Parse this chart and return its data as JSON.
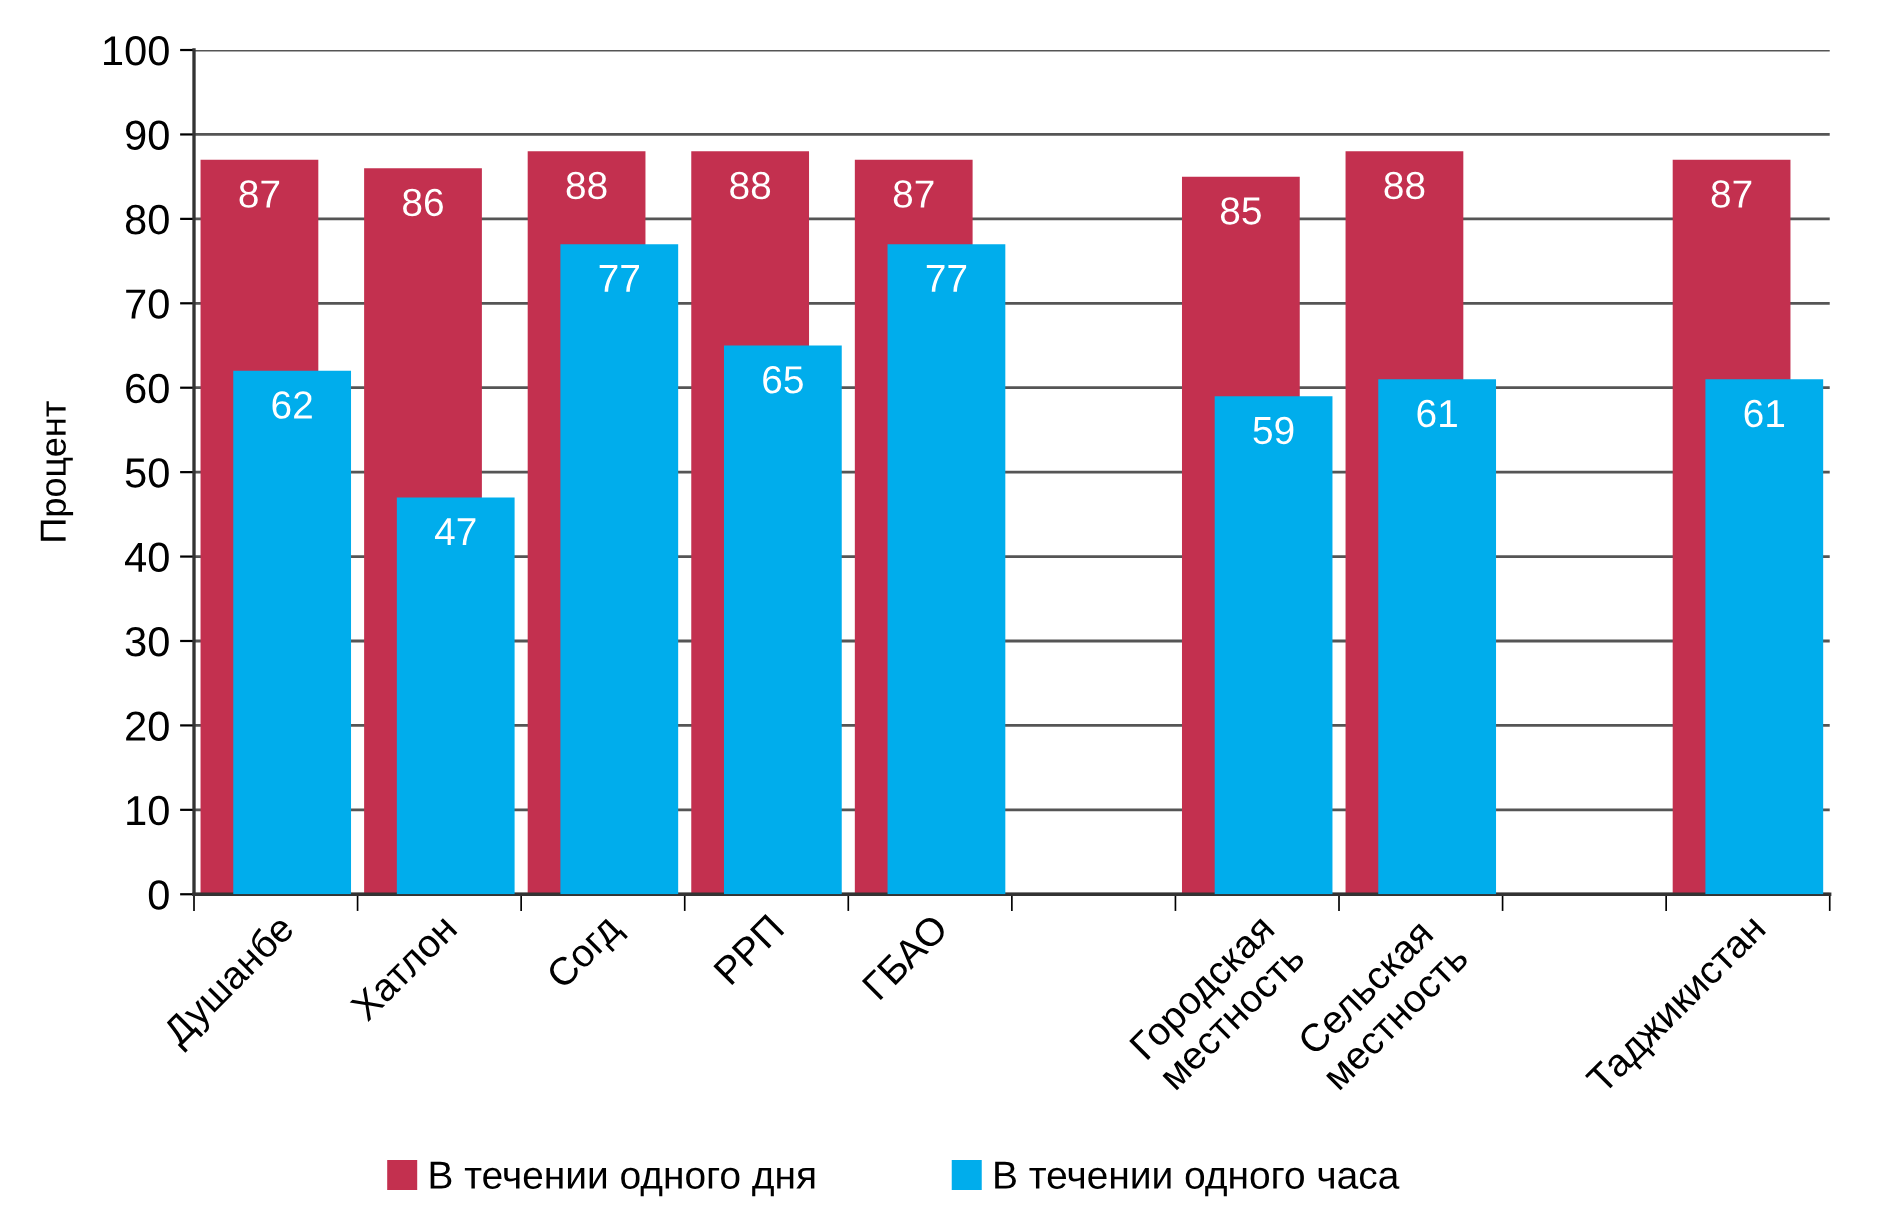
{
  "chart_data": {
    "type": "bar",
    "ylabel": "Процент",
    "categories": [
      "Душанбе",
      "Хатлон",
      "Согд",
      "РРП",
      "ГБАО",
      null,
      "Городская\nместность",
      "Сельская\nместность",
      null,
      "Таджикистан"
    ],
    "series": [
      {
        "name": "В течении одного дня",
        "color": "#c3304f",
        "values": [
          87,
          86,
          88,
          88,
          87,
          null,
          85,
          88,
          null,
          87
        ]
      },
      {
        "name": "В течении одного часа",
        "color": "#00adec",
        "values": [
          62,
          47,
          77,
          65,
          77,
          null,
          59,
          61,
          null,
          61
        ]
      }
    ],
    "ylim": [
      0,
      100
    ],
    "yticks": [
      0,
      10,
      20,
      30,
      40,
      50,
      60,
      70,
      80,
      90,
      100
    ],
    "grid": "y",
    "legend": "bottom",
    "data_labels": true
  }
}
